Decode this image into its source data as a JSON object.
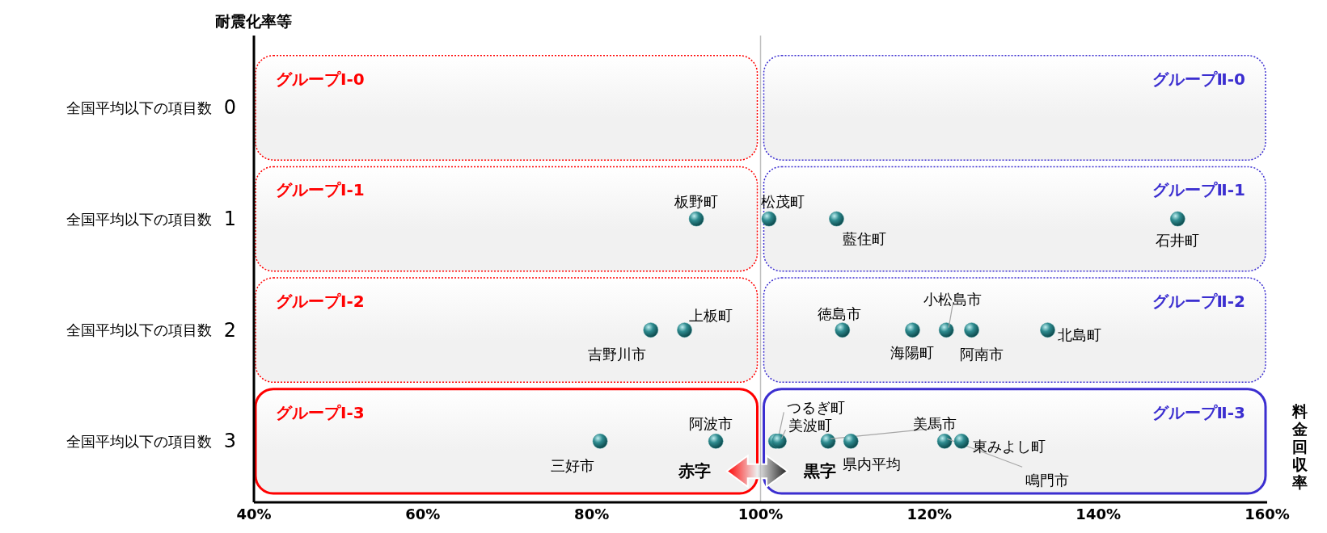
{
  "chart_data": {
    "type": "scatter",
    "xlabel": "料金回収率",
    "ylabel": "耐震化率等",
    "xlim": [
      40,
      160
    ],
    "xticks": [
      {
        "value": 40,
        "label": "40%"
      },
      {
        "value": 60,
        "label": "60%"
      },
      {
        "value": 80,
        "label": "80%"
      },
      {
        "value": 100,
        "label": "100%"
      },
      {
        "value": 120,
        "label": "120%"
      },
      {
        "value": 140,
        "label": "140%"
      },
      {
        "value": 160,
        "label": "160%"
      }
    ],
    "ylim": [
      3.55,
      -0.65
    ],
    "yticks": [
      0,
      1,
      2,
      3
    ],
    "marker": "circle",
    "ref_lines": [
      {
        "axis": "x",
        "value": 100,
        "color": "#bfbfbf"
      }
    ],
    "annotations": [
      "グループⅠ-0",
      "グループⅠ-1",
      "グループⅠ-2",
      "グループⅠ-3",
      "グループⅡ-0",
      "グループⅡ-1",
      "グループⅡ-2",
      "グループⅡ-3",
      "赤字",
      "黒字",
      "全国平均以下の項目数",
      "全国平均以下の項目数",
      "全国平均以下の項目数",
      "全国平均以下の項目数"
    ],
    "series": [
      {
        "name": "板野町",
        "color": "#2e8b8f",
        "x": [
          92.4
        ],
        "values": [
          1
        ]
      },
      {
        "name": "松茂町",
        "color": "#2e8b8f",
        "x": [
          101
        ],
        "values": [
          1
        ]
      },
      {
        "name": "藍住町",
        "color": "#2e8b8f",
        "x": [
          109
        ],
        "values": [
          1
        ]
      },
      {
        "name": "石井町",
        "color": "#2e8b8f",
        "x": [
          149.4
        ],
        "values": [
          1
        ]
      },
      {
        "name": "吉野川市",
        "color": "#2e8b8f",
        "x": [
          87
        ],
        "values": [
          2
        ]
      },
      {
        "name": "上板町",
        "color": "#2e8b8f",
        "x": [
          91
        ],
        "values": [
          2
        ]
      },
      {
        "name": "徳島市",
        "color": "#2e8b8f",
        "x": [
          109.7
        ],
        "values": [
          2
        ]
      },
      {
        "name": "海陽町",
        "color": "#2e8b8f",
        "x": [
          118
        ],
        "values": [
          2
        ]
      },
      {
        "name": "小松島市",
        "color": "#2e8b8f",
        "x": [
          122
        ],
        "values": [
          2
        ]
      },
      {
        "name": "阿南市",
        "color": "#2e8b8f",
        "x": [
          125
        ],
        "values": [
          2
        ]
      },
      {
        "name": "北島町",
        "color": "#2e8b8f",
        "x": [
          134
        ],
        "values": [
          2
        ]
      },
      {
        "name": "三好市",
        "color": "#2e8b8f",
        "x": [
          81
        ],
        "values": [
          3
        ]
      },
      {
        "name": "阿波市",
        "color": "#2e8b8f",
        "x": [
          94.7
        ],
        "values": [
          3
        ]
      },
      {
        "name": "つるぎ町",
        "color": "#2e8b8f",
        "x": [
          101.8
        ],
        "values": [
          3
        ]
      },
      {
        "name": "美波町",
        "color": "#2e8b8f",
        "x": [
          102.2
        ],
        "values": [
          3
        ]
      },
      {
        "name": "美馬市",
        "color": "#2e8b8f",
        "x": [
          108
        ],
        "values": [
          3
        ]
      },
      {
        "name": "県内平均",
        "color": "#2e8b8f",
        "x": [
          110.7
        ],
        "values": [
          3
        ]
      },
      {
        "name": "鳴門市",
        "color": "#2e8b8f",
        "x": [
          121.8
        ],
        "values": [
          3
        ]
      },
      {
        "name": "東みよし町",
        "color": "#2e8b8f",
        "x": [
          123.8
        ],
        "values": [
          3
        ]
      }
    ]
  }
}
